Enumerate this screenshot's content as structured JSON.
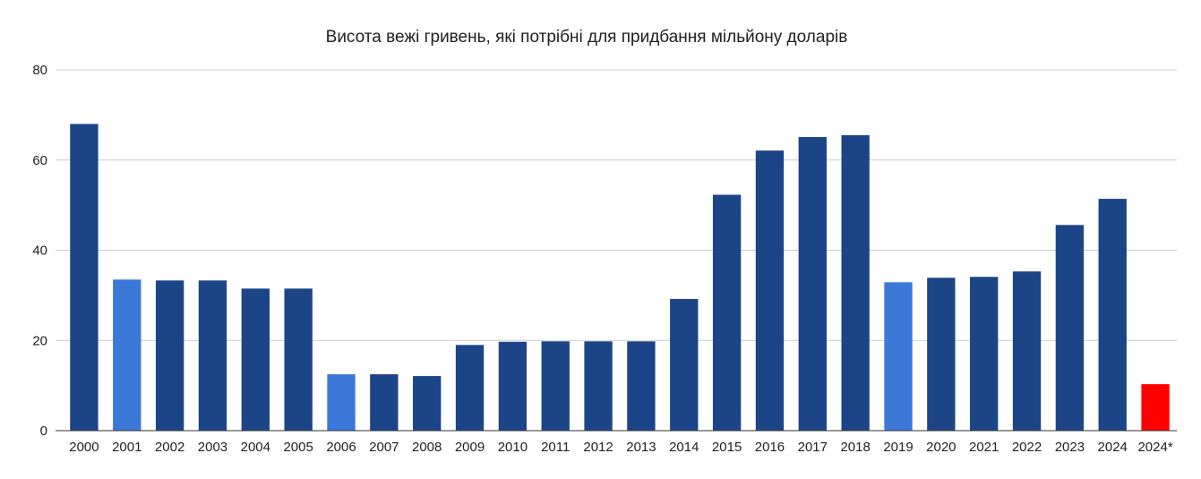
{
  "chart_data": {
    "type": "bar",
    "title": "Висота вежі гривень, які потрібні для придбання мільйону доларів",
    "xlabel": "",
    "ylabel": "",
    "categories": [
      "2000",
      "2001",
      "2002",
      "2003",
      "2004",
      "2005",
      "2006",
      "2007",
      "2008",
      "2009",
      "2010",
      "2011",
      "2012",
      "2013",
      "2014",
      "2015",
      "2016",
      "2017",
      "2018",
      "2019",
      "2020",
      "2021",
      "2022",
      "2023",
      "2024",
      "2024*"
    ],
    "values": [
      68,
      33.5,
      33.3,
      33.3,
      31.5,
      31.5,
      12.5,
      12.5,
      12.1,
      19,
      19.7,
      19.8,
      19.8,
      19.8,
      29.2,
      52.3,
      62.1,
      65.1,
      65.5,
      32.9,
      33.9,
      34.1,
      35.3,
      45.6,
      51.4,
      10.3
    ],
    "bar_colors": [
      "#1c4587",
      "#3c78d8",
      "#1c4587",
      "#1c4587",
      "#1c4587",
      "#1c4587",
      "#3c78d8",
      "#1c4587",
      "#1c4587",
      "#1c4587",
      "#1c4587",
      "#1c4587",
      "#1c4587",
      "#1c4587",
      "#1c4587",
      "#1c4587",
      "#1c4587",
      "#1c4587",
      "#1c4587",
      "#3c78d8",
      "#1c4587",
      "#1c4587",
      "#1c4587",
      "#1c4587",
      "#1c4587",
      "#ff0000"
    ],
    "ylim": [
      0,
      80
    ],
    "yticks": [
      0,
      20,
      40,
      60,
      80
    ],
    "grid": true,
    "legend": "none"
  },
  "colors": {
    "primary": "#1c4587",
    "highlight": "#3c78d8",
    "forecast": "#ff0000",
    "grid": "#cccccc"
  }
}
